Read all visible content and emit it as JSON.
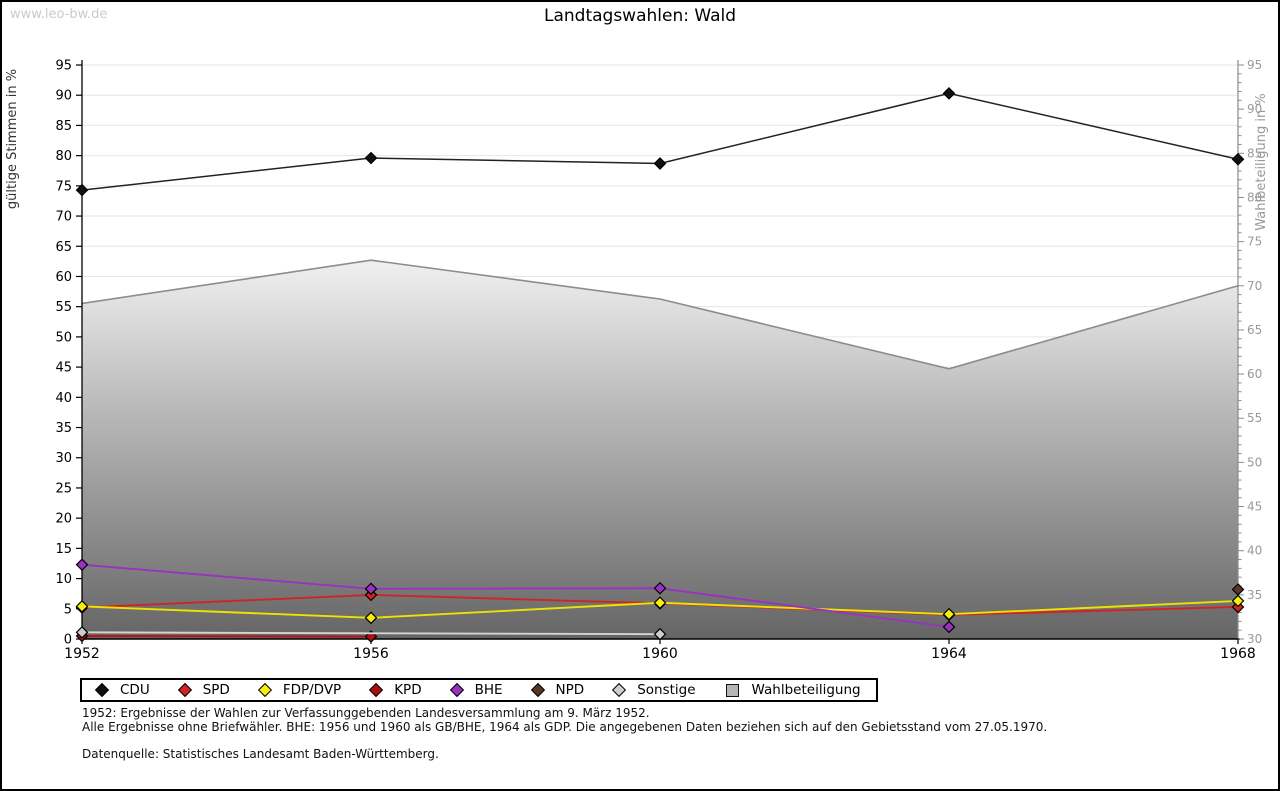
{
  "page": {
    "watermark": "www.leo-bw.de",
    "title": "Landtagswahlen: Wald",
    "footnote1": "1952: Ergebnisse der Wahlen zur Verfassunggebenden Landesversammlung am 9. März 1952.",
    "footnote2": "Alle Ergebnisse ohne Briefwähler. BHE: 1956 und 1960 als GB/BHE, 1964 als GDP. Die angegebenen Daten beziehen sich auf den Gebietsstand vom 27.05.1970.",
    "source": "Datenquelle: Statistisches Landesamt Baden-Württemberg."
  },
  "chart_data": {
    "type": "line",
    "title": "Landtagswahlen: Wald",
    "x": [
      1952,
      1956,
      1960,
      1964,
      1968
    ],
    "left_axis": {
      "label": "gültige Stimmen in %",
      "min": 0,
      "max": 95,
      "step": 5,
      "color": "#333333"
    },
    "right_axis": {
      "label": "Wahlbeteiligung in %",
      "min": 30,
      "max": 95,
      "step": 5,
      "minor_step": 1,
      "color": "#999999"
    },
    "grid": true,
    "legend_position": "bottom",
    "series": [
      {
        "name": "CDU",
        "type": "line",
        "axis": "left",
        "marker": "diamond",
        "color": "#222222",
        "marker_fill": "#111111",
        "values": [
          74.3,
          79.6,
          78.7,
          90.3,
          79.4
        ]
      },
      {
        "name": "SPD",
        "type": "line",
        "axis": "left",
        "marker": "diamond",
        "color": "#d42222",
        "marker_fill": "#d42222",
        "values": [
          5.2,
          7.3,
          5.9,
          4.0,
          5.3
        ]
      },
      {
        "name": "FDP/DVP",
        "type": "line",
        "axis": "left",
        "marker": "diamond",
        "color": "#ece400",
        "marker_fill": "#f5ef0a",
        "values": [
          5.4,
          3.5,
          6.0,
          4.1,
          6.3
        ]
      },
      {
        "name": "KPD",
        "type": "line",
        "axis": "left",
        "marker": "diamond",
        "color": "#bb1111",
        "marker_fill": "#aa0f0f",
        "values": [
          0.5,
          0.4,
          null,
          null,
          null
        ]
      },
      {
        "name": "BHE",
        "type": "line",
        "axis": "left",
        "marker": "diamond",
        "color": "#9933bf",
        "marker_fill": "#9933bf",
        "values": [
          12.3,
          8.3,
          8.4,
          2.0,
          null
        ]
      },
      {
        "name": "NPD",
        "type": "line",
        "axis": "left",
        "marker": "diamond",
        "color": "#583726",
        "marker_fill": "#583726",
        "values": [
          null,
          null,
          null,
          null,
          8.2
        ]
      },
      {
        "name": "Sonstige",
        "type": "line",
        "axis": "left",
        "marker": "diamond",
        "color": "#d4d4d4",
        "marker_fill": "#cdcdcd",
        "values": [
          1.1,
          null,
          0.8,
          null,
          null
        ]
      },
      {
        "name": "Wahlbeteiligung",
        "type": "area",
        "axis": "right",
        "marker": "square",
        "color": "#8c8c8c",
        "fill_top": "#f3f3f3",
        "fill_bottom": "#656565",
        "legend_fill": "#b5b5b5",
        "values": [
          68.0,
          72.9,
          68.5,
          60.6,
          70.0
        ]
      }
    ]
  }
}
